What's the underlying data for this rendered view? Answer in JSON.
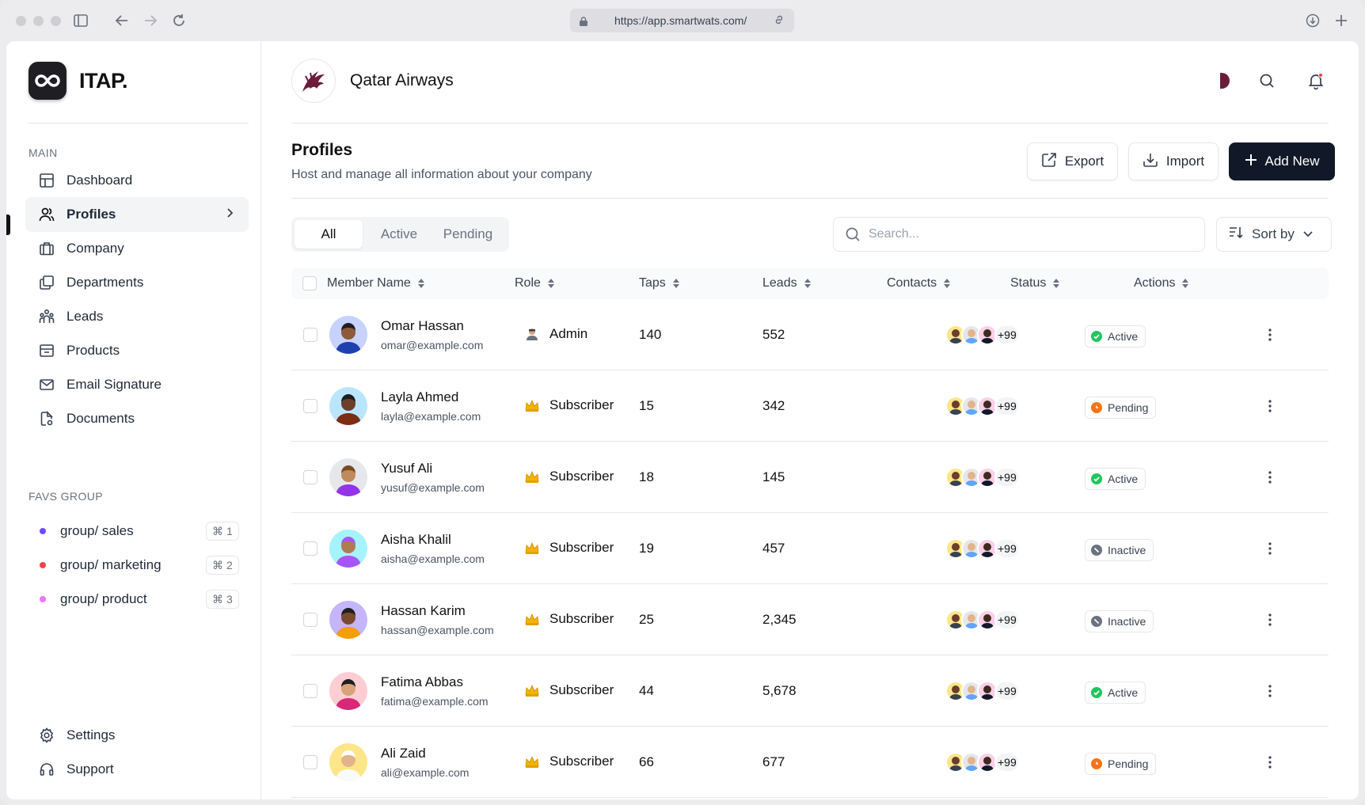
{
  "browser": {
    "url": "https://app.smartwats.com/"
  },
  "app": {
    "logo_text": "ITAP."
  },
  "sidebar": {
    "main_label": "MAIN",
    "items": [
      {
        "label": "Dashboard",
        "icon": "grid-icon"
      },
      {
        "label": "Profiles",
        "icon": "users-icon",
        "active": true
      },
      {
        "label": "Company",
        "icon": "briefcase-icon"
      },
      {
        "label": "Departments",
        "icon": "layers-icon"
      },
      {
        "label": "Leads",
        "icon": "people-icon"
      },
      {
        "label": "Products",
        "icon": "box-icon"
      },
      {
        "label": "Email Signature",
        "icon": "mail-icon"
      },
      {
        "label": "Documents",
        "icon": "document-icon"
      }
    ],
    "favs_label": "FAVS GROUP",
    "favs": [
      {
        "label": "group/ sales",
        "shortcut": "⌘ 1",
        "color": "#6d4aff"
      },
      {
        "label": "group/ marketing",
        "shortcut": "⌘ 2",
        "color": "#ef4444"
      },
      {
        "label": "group/ product",
        "shortcut": "⌘ 3",
        "color": "#e879f9"
      }
    ],
    "bottom": [
      {
        "label": "Settings",
        "icon": "gear-icon"
      },
      {
        "label": "Support",
        "icon": "headset-icon"
      }
    ]
  },
  "header": {
    "company_name": "Qatar Airways"
  },
  "page": {
    "title": "Profiles",
    "subtitle": "Host and manage all information about your company",
    "export_label": "Export",
    "import_label": "Import",
    "add_label": "Add New"
  },
  "filters": {
    "tabs": [
      "All",
      "Active",
      "Pending"
    ],
    "search_placeholder": "Search...",
    "sort_label": "Sort by"
  },
  "table": {
    "columns": [
      "Member Name",
      "Role",
      "Taps",
      "Leads",
      "Contacts",
      "Status",
      "Actions"
    ],
    "rows": [
      {
        "name": "Omar Hassan",
        "email": "omar@example.com",
        "role": "Admin",
        "taps": "140",
        "leads": "552",
        "contacts_more": "+99",
        "status": "Active"
      },
      {
        "name": "Layla Ahmed",
        "email": "layla@example.com",
        "role": "Subscriber",
        "taps": "15",
        "leads": "342",
        "contacts_more": "+99",
        "status": "Pending"
      },
      {
        "name": "Yusuf Ali",
        "email": "yusuf@example.com",
        "role": "Subscriber",
        "taps": "18",
        "leads": "145",
        "contacts_more": "+99",
        "status": "Active"
      },
      {
        "name": "Aisha Khalil",
        "email": "aisha@example.com",
        "role": "Subscriber",
        "taps": "19",
        "leads": "457",
        "contacts_more": "+99",
        "status": "Inactive"
      },
      {
        "name": "Hassan Karim",
        "email": "hassan@example.com",
        "role": "Subscriber",
        "taps": "25",
        "leads": "2,345",
        "contacts_more": "+99",
        "status": "Inactive"
      },
      {
        "name": "Fatima Abbas",
        "email": "fatima@example.com",
        "role": "Subscriber",
        "taps": "44",
        "leads": "5,678",
        "contacts_more": "+99",
        "status": "Active"
      },
      {
        "name": "Ali Zaid",
        "email": "ali@example.com",
        "role": "Subscriber",
        "taps": "66",
        "leads": "677",
        "contacts_more": "+99",
        "status": "Pending"
      }
    ]
  },
  "colors": {
    "status_active": "#22c55e",
    "status_pending": "#f97316",
    "status_inactive": "#6b7280",
    "brand_maroon": "#6b1c3a"
  }
}
